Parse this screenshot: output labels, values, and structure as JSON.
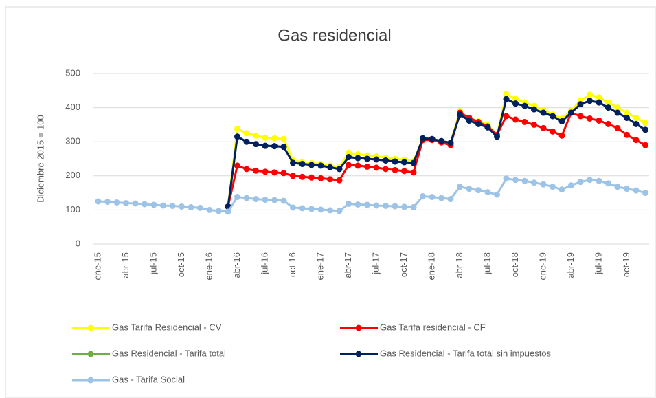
{
  "chart_data": {
    "type": "line",
    "title": "Gas residencial",
    "y_label": "Diciembre 2015 = 100",
    "categories": [
      "ene-15",
      null,
      null,
      "abr-15",
      null,
      null,
      "jul-15",
      null,
      null,
      "oct-15",
      null,
      null,
      "ene-16",
      null,
      null,
      "abr-16",
      null,
      null,
      "jul-16",
      null,
      null,
      "oct-16",
      null,
      null,
      "ene-17",
      null,
      null,
      "abr-17",
      null,
      null,
      "jul-17",
      null,
      null,
      "oct-17",
      null,
      null,
      "ene-18",
      null,
      null,
      "abr-18",
      null,
      null,
      "jul-18",
      null,
      null,
      "oct-18",
      null,
      null,
      "ene-19",
      null,
      null,
      "abr-19",
      null,
      null,
      "jul-19",
      null,
      null,
      "oct-19",
      null,
      null
    ],
    "ylim": [
      0,
      500
    ],
    "yticks": [
      0,
      100,
      200,
      300,
      400,
      500
    ],
    "grid": true,
    "legend": "bottom",
    "series": [
      {
        "name": "Gas Tarifa Residencial - CV",
        "color": "#ffff00",
        "values": [
          null,
          null,
          null,
          null,
          null,
          null,
          null,
          null,
          null,
          null,
          null,
          null,
          null,
          null,
          110,
          338,
          325,
          318,
          312,
          310,
          308,
          245,
          240,
          237,
          235,
          230,
          225,
          268,
          263,
          260,
          257,
          253,
          250,
          247,
          243,
          310,
          308,
          302,
          297,
          390,
          370,
          360,
          350,
          320,
          440,
          425,
          415,
          405,
          395,
          380,
          368,
          392,
          420,
          438,
          430,
          415,
          400,
          385,
          370,
          355
        ]
      },
      {
        "name": "Gas Tarifa residencial - CF",
        "color": "#ff0000",
        "values": [
          null,
          null,
          null,
          null,
          null,
          null,
          null,
          null,
          null,
          null,
          null,
          null,
          null,
          null,
          110,
          230,
          220,
          215,
          212,
          210,
          208,
          200,
          197,
          195,
          193,
          190,
          187,
          232,
          230,
          227,
          224,
          220,
          217,
          214,
          210,
          305,
          305,
          298,
          290,
          385,
          370,
          358,
          345,
          320,
          375,
          365,
          358,
          350,
          340,
          330,
          318,
          385,
          375,
          368,
          362,
          352,
          340,
          320,
          305,
          290
        ]
      },
      {
        "name": "Gas Residencial - Tarifa total",
        "color": "#70ad47",
        "values": [
          null,
          null,
          null,
          null,
          null,
          null,
          null,
          null,
          null,
          null,
          null,
          null,
          null,
          null,
          110,
          315,
          300,
          293,
          288,
          287,
          285,
          238,
          235,
          232,
          230,
          225,
          220,
          255,
          252,
          250,
          248,
          245,
          242,
          240,
          238,
          310,
          308,
          302,
          297,
          380,
          362,
          352,
          342,
          315,
          425,
          412,
          405,
          395,
          385,
          375,
          360,
          385,
          410,
          420,
          415,
          400,
          385,
          370,
          352,
          335
        ]
      },
      {
        "name": "Gas Residencial - Tarifa total sin impuestos",
        "color": "#002060",
        "values": [
          null,
          null,
          null,
          null,
          null,
          null,
          null,
          null,
          null,
          null,
          null,
          null,
          null,
          null,
          110,
          315,
          300,
          293,
          288,
          287,
          285,
          238,
          235,
          232,
          230,
          225,
          220,
          255,
          252,
          250,
          248,
          245,
          242,
          240,
          238,
          310,
          308,
          302,
          297,
          380,
          362,
          352,
          342,
          315,
          425,
          412,
          405,
          395,
          385,
          375,
          360,
          385,
          410,
          420,
          415,
          400,
          385,
          370,
          352,
          335
        ]
      },
      {
        "name": "Gas - Tarifa Social",
        "color": "#9dc3e6",
        "values": [
          125,
          124,
          122,
          120,
          119,
          117,
          115,
          113,
          112,
          110,
          108,
          106,
          100,
          97,
          95,
          138,
          135,
          132,
          130,
          129,
          127,
          107,
          105,
          103,
          101,
          99,
          97,
          118,
          116,
          115,
          113,
          112,
          111,
          109,
          108,
          140,
          138,
          135,
          132,
          168,
          162,
          158,
          152,
          145,
          192,
          188,
          185,
          180,
          175,
          168,
          160,
          172,
          182,
          188,
          185,
          178,
          168,
          162,
          157,
          150
        ]
      }
    ]
  }
}
